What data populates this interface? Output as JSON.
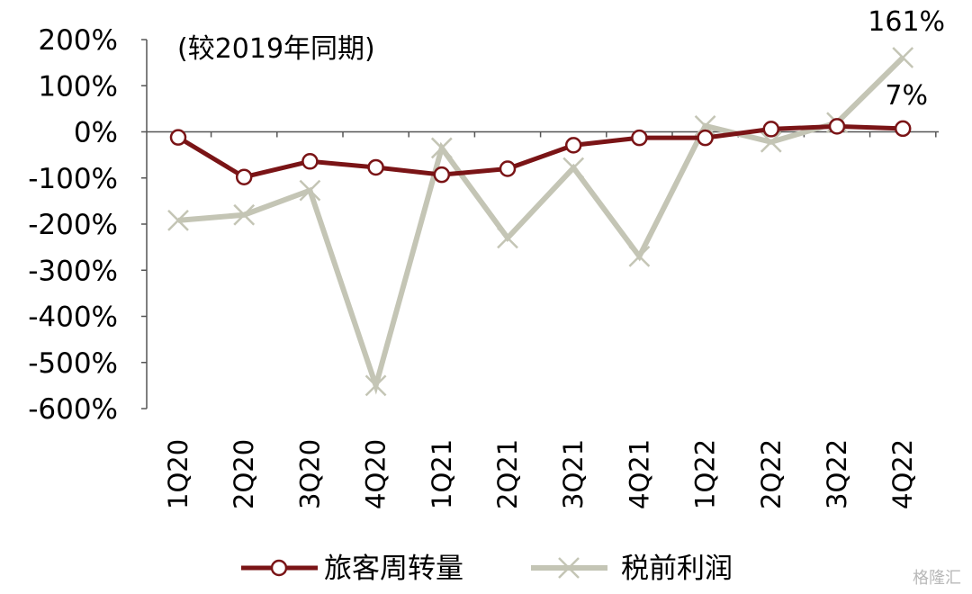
{
  "chart_data": {
    "type": "line",
    "subtitle": "(较2019年同期)",
    "categories": [
      "1Q20",
      "2Q20",
      "3Q20",
      "4Q20",
      "1Q21",
      "2Q21",
      "3Q21",
      "4Q21",
      "1Q22",
      "2Q22",
      "3Q22",
      "4Q22"
    ],
    "ylim": [
      -600,
      200
    ],
    "yticks": [
      200,
      100,
      0,
      -100,
      -200,
      -300,
      -400,
      -500,
      -600
    ],
    "ytick_labels": [
      "200%",
      "100%",
      "0%",
      "-100%",
      "-200%",
      "-300%",
      "-400%",
      "-500%",
      "-600%"
    ],
    "series": [
      {
        "name": "旅客周转量",
        "marker": "circle",
        "color": "#7a1416",
        "values": [
          -12,
          -98,
          -64,
          -77,
          -93,
          -80,
          -29,
          -13,
          -13,
          6,
          12,
          7
        ]
      },
      {
        "name": "税前利润",
        "marker": "x",
        "color": "#c4c5b5",
        "values": [
          -192,
          -180,
          -127,
          -550,
          -35,
          -230,
          -78,
          -270,
          13,
          -22,
          20,
          161
        ]
      }
    ],
    "annotations": [
      {
        "text": "161%",
        "series": 1,
        "index": 11,
        "position": "above"
      },
      {
        "text": "7%",
        "series": 0,
        "index": 11,
        "position": "above"
      }
    ],
    "legend": {
      "position": "bottom",
      "entries": [
        "旅客周转量",
        "税前利润"
      ]
    },
    "grid": false
  },
  "watermark": "格隆汇"
}
